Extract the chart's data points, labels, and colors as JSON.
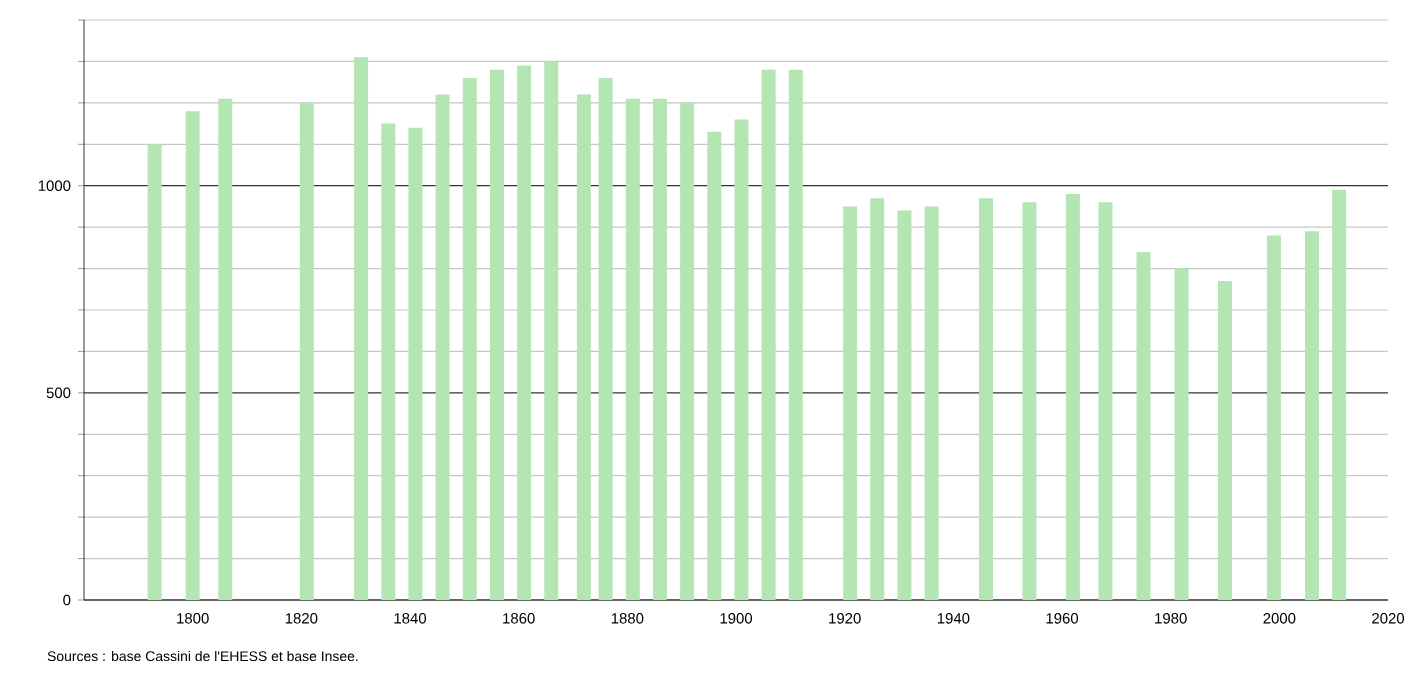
{
  "chart_data": {
    "type": "bar",
    "x": [
      1793,
      1800,
      1806,
      1821,
      1831,
      1836,
      1841,
      1846,
      1851,
      1856,
      1861,
      1866,
      1872,
      1876,
      1881,
      1886,
      1891,
      1896,
      1901,
      1906,
      1911,
      1921,
      1926,
      1931,
      1936,
      1946,
      1954,
      1962,
      1968,
      1975,
      1982,
      1990,
      1999,
      2006,
      2011
    ],
    "values": [
      1100,
      1180,
      1210,
      1200,
      1310,
      1150,
      1140,
      1220,
      1260,
      1280,
      1290,
      1300,
      1220,
      1260,
      1210,
      1210,
      1200,
      1130,
      1160,
      1280,
      1280,
      950,
      970,
      940,
      950,
      970,
      960,
      980,
      960,
      840,
      800,
      770,
      880,
      890,
      990
    ],
    "color": "#b3e6b3",
    "xlim": [
      1780,
      2020
    ],
    "xticks": [
      1800,
      1820,
      1840,
      1860,
      1880,
      1900,
      1920,
      1940,
      1960,
      1980,
      2000,
      2020
    ],
    "ylim": [
      0,
      1400
    ],
    "yticks": [
      0,
      {
        "value": 100,
        "label": null
      },
      {
        "value": 200,
        "label": null
      },
      {
        "value": 300,
        "label": null
      },
      {
        "value": 400,
        "label": null
      },
      500,
      {
        "value": 600,
        "label": null
      },
      {
        "value": 700,
        "label": null
      },
      {
        "value": 800,
        "label": null
      },
      {
        "value": 900,
        "label": null
      },
      1000,
      {
        "value": 1100,
        "label": null
      },
      {
        "value": 1200,
        "label": null
      },
      {
        "value": 1300,
        "label": null
      },
      {
        "value": 1400,
        "label": null
      }
    ],
    "grid": "y",
    "annotations": [
      "Sources : base Cassini de l'EHESS et base Insee."
    ]
  }
}
